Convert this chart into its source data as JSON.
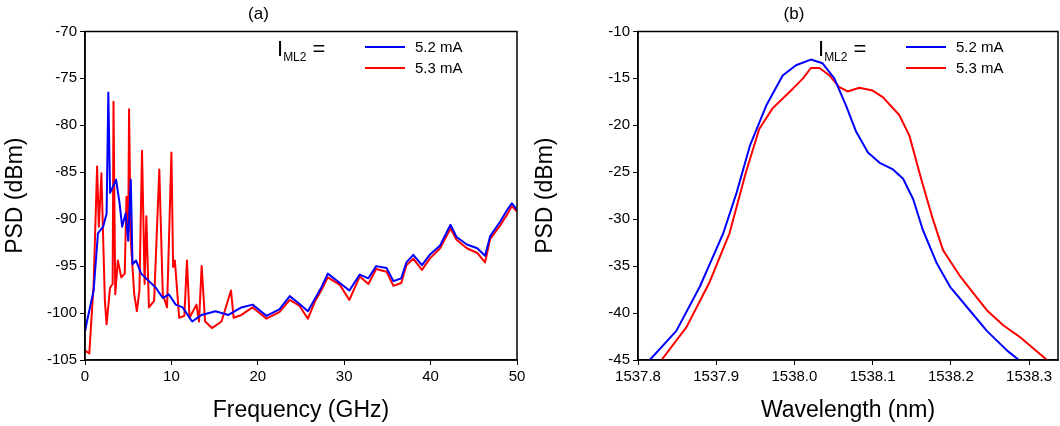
{
  "chart_data": [
    {
      "type": "line",
      "title": "(a)",
      "xlabel": "Frequency (GHz)",
      "ylabel": "PSD (dBm)",
      "legend_title": "I$_{ML2}$ =",
      "legend": "top right",
      "grid": false,
      "xlim": [
        0,
        50
      ],
      "xticks": [
        0,
        10,
        20,
        30,
        40,
        50
      ],
      "ylim": [
        -105,
        -70
      ],
      "yticks": [
        -105,
        -100,
        -95,
        -90,
        -85,
        -80,
        -75,
        -70
      ],
      "series": [
        {
          "name": "5.2 mA",
          "color": "#0000ff",
          "x": [
            0,
            0.2,
            1.0,
            1.5,
            2.1,
            2.5,
            2.7,
            2.9,
            3.6,
            4.0,
            4.3,
            4.7,
            5.0,
            5.3,
            5.5,
            5.9,
            6.5,
            7.4,
            8.2,
            9.0,
            9.7,
            10.5,
            11.3,
            12.4,
            13.5,
            15.1,
            16.6,
            18.1,
            19.4,
            21.0,
            22.5,
            23.7,
            24.8,
            25.8,
            26.6,
            27.4,
            28.1,
            29.5,
            30.6,
            31.8,
            32.8,
            33.7,
            34.9,
            35.7,
            36.6,
            37.2,
            38.0,
            39.0,
            39.9,
            41.1,
            42.3,
            43.0,
            44.2,
            45.4,
            46.3,
            46.9,
            48.1,
            48.8,
            49.4,
            50
          ],
          "values": [
            -102,
            -101,
            -97.6,
            -91.5,
            -90.8,
            -89.4,
            -76.5,
            -87.2,
            -85.8,
            -88.3,
            -90.8,
            -89.4,
            -92.3,
            -85.8,
            -94.8,
            -94.4,
            -95.8,
            -96.6,
            -97.3,
            -98.4,
            -98,
            -99.1,
            -99.4,
            -100.9,
            -100.2,
            -99.8,
            -100.2,
            -99.4,
            -99.1,
            -100.3,
            -99.6,
            -98.2,
            -99,
            -99.8,
            -98.5,
            -97.2,
            -95.8,
            -96.8,
            -97.6,
            -95.9,
            -96.3,
            -95,
            -95.2,
            -96.6,
            -96.3,
            -94.6,
            -93.8,
            -94.9,
            -93.8,
            -92.8,
            -90.6,
            -91.9,
            -92.7,
            -93.1,
            -93.9,
            -91.8,
            -90.2,
            -89.1,
            -88.3,
            -89
          ]
        },
        {
          "name": "5.3 mA",
          "color": "#ff0000",
          "x": [
            0,
            0.5,
            1.0,
            1.4,
            1.6,
            1.9,
            2.3,
            2.5,
            2.9,
            3.2,
            3.3,
            3.5,
            3.8,
            4.2,
            4.6,
            4.8,
            5.0,
            5.1,
            5.3,
            5.7,
            6.0,
            6.3,
            6.6,
            6.9,
            7.1,
            7.4,
            8.0,
            8.6,
            9.0,
            9.5,
            10.0,
            10.2,
            10.4,
            10.9,
            11.5,
            11.8,
            12.1,
            12.9,
            13.2,
            13.5,
            13.9,
            14.7,
            15.8,
            16.9,
            17.2,
            18.1,
            19.4,
            21.0,
            22.5,
            23.7,
            24.8,
            25.8,
            26.6,
            27.4,
            28.1,
            29.5,
            30.6,
            31.8,
            32.8,
            33.7,
            34.9,
            35.7,
            36.6,
            37.2,
            38.0,
            39.0,
            39.9,
            41.1,
            42.3,
            43.0,
            44.2,
            45.4,
            46.3,
            46.9,
            48.1,
            48.8,
            49.4,
            50
          ],
          "values": [
            -104,
            -104.3,
            -96.9,
            -84.4,
            -90.8,
            -85.1,
            -98.7,
            -101.2,
            -97.3,
            -96.9,
            -77.5,
            -98,
            -94.4,
            -96.2,
            -95.8,
            -87.6,
            -91.5,
            -78.3,
            -92.3,
            -98,
            -99.8,
            -97.6,
            -82.7,
            -96.9,
            -89.7,
            -99.4,
            -98.7,
            -84.7,
            -98,
            -99.4,
            -82.9,
            -95.1,
            -94.4,
            -100.5,
            -100.3,
            -94.4,
            -100.5,
            -99.1,
            -100.9,
            -95,
            -100.9,
            -101.6,
            -100.9,
            -97.6,
            -100.5,
            -100.2,
            -99.4,
            -100.6,
            -99.9,
            -98.6,
            -99.2,
            -100.6,
            -98.8,
            -97.5,
            -96.2,
            -97,
            -98.6,
            -96.1,
            -96.9,
            -95.3,
            -95.6,
            -97.1,
            -96.8,
            -94.9,
            -94.2,
            -95.4,
            -94.2,
            -93.1,
            -91,
            -92.2,
            -93.1,
            -93.6,
            -94.6,
            -92.1,
            -90.6,
            -89.6,
            -88.6,
            -89.2
          ]
        }
      ]
    },
    {
      "type": "line",
      "title": "(b)",
      "xlabel": "Wavelength (nm)",
      "ylabel": "PSD (dBm)",
      "legend_title": "I$_{ML2}$ =",
      "legend": "top right",
      "grid": false,
      "xlim": [
        1537.8,
        1538.337
      ],
      "xticks": [
        1537.8,
        1537.9,
        {
          "value": 1538,
          "label": "1538.0"
        },
        1538.1,
        1538.2,
        1538.3
      ],
      "ylim": [
        -45,
        -10
      ],
      "yticks": [
        -45,
        -40,
        -35,
        -30,
        -25,
        -20,
        -15,
        -10
      ],
      "series": [
        {
          "name": "5.2 mA",
          "color": "#0000ff",
          "x": [
            1537.815,
            1537.849,
            1537.879,
            1537.909,
            1537.926,
            1537.943,
            1537.964,
            1537.985,
            1538.002,
            1538.021,
            1538.036,
            1538.051,
            1538.066,
            1538.079,
            1538.094,
            1538.109,
            1538.126,
            1538.139,
            1538.152,
            1538.164,
            1538.182,
            1538.199,
            1538.224,
            1538.246,
            1538.272,
            1538.287
          ],
          "values": [
            -45,
            -41.9,
            -37.2,
            -31.5,
            -27.2,
            -22.2,
            -17.9,
            -14.7,
            -13.6,
            -13,
            -13.4,
            -15,
            -17.9,
            -20.7,
            -22.9,
            -24,
            -24.7,
            -25.7,
            -27.9,
            -31.1,
            -34.7,
            -37.2,
            -39.7,
            -41.9,
            -44,
            -45
          ]
        },
        {
          "name": "5.3 mA",
          "color": "#ff0000",
          "x": [
            1537.83,
            1537.862,
            1537.891,
            1537.917,
            1537.938,
            1537.955,
            1537.972,
            1537.998,
            1538.011,
            1538.021,
            1538.032,
            1538.045,
            1538.057,
            1538.068,
            1538.083,
            1538.1,
            1538.113,
            1538.134,
            1538.147,
            1538.162,
            1538.177,
            1538.19,
            1538.212,
            1538.229,
            1538.246,
            1538.267,
            1538.289,
            1538.323
          ],
          "values": [
            -45,
            -41.5,
            -36.8,
            -31.5,
            -25,
            -20.4,
            -18.2,
            -16.1,
            -15,
            -13.9,
            -13.9,
            -14.7,
            -15.9,
            -16.4,
            -16,
            -16.3,
            -17,
            -18.9,
            -21.1,
            -25.7,
            -30,
            -33.3,
            -36.1,
            -37.9,
            -39.7,
            -41.3,
            -42.6,
            -45
          ]
        }
      ]
    }
  ]
}
